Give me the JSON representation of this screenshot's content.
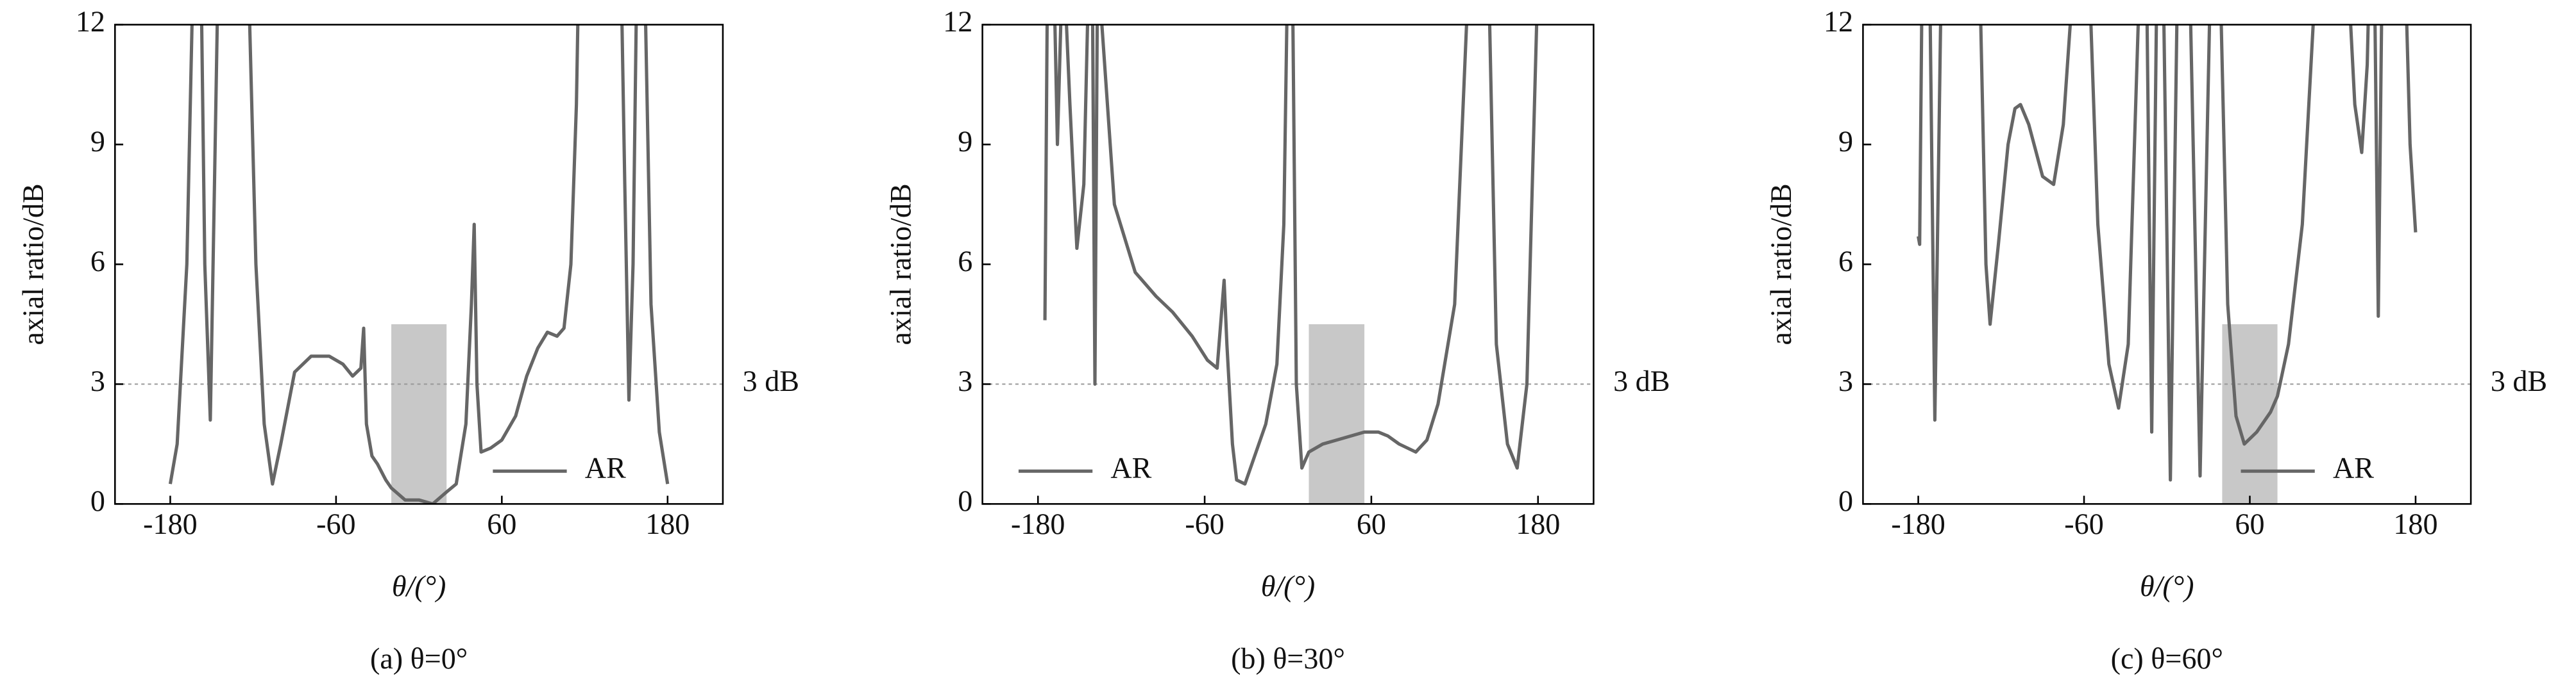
{
  "chart_data": [
    {
      "type": "line",
      "caption": "(a) θ=0°",
      "x_label": "θ/(°)",
      "y_label": "axial ratio/dB",
      "xlim": [
        -220,
        220
      ],
      "ylim": [
        0,
        12
      ],
      "xticks": [
        -180,
        -60,
        60,
        180
      ],
      "yticks": [
        0,
        3,
        6,
        9,
        12
      ],
      "legend": "lower right",
      "reference_line": {
        "value": 3,
        "label": "3 dB"
      },
      "highlight": {
        "x": [
          -20,
          20
        ],
        "y": [
          0,
          4.5
        ],
        "color": "#c8c8c8"
      },
      "x": [
        -180,
        -175,
        -168,
        -163,
        -158,
        -155,
        -151,
        -148,
        -145,
        -124,
        -118,
        -112,
        -106,
        -100,
        -90,
        -78,
        -65,
        -55,
        -48,
        -42,
        -40,
        -38,
        -34,
        -30,
        -24,
        -20,
        -10,
        0,
        10,
        20,
        27,
        34,
        38,
        40,
        42,
        45,
        52,
        60,
        70,
        78,
        86,
        93,
        100,
        105,
        110,
        114,
        116,
        146,
        149,
        152,
        155,
        158,
        163,
        168,
        174,
        180
      ],
      "series": [
        {
          "name": "AR",
          "color": "#666666",
          "values": [
            0.5,
            1.5,
            6,
            14,
            14,
            6,
            2.1,
            8,
            14,
            14,
            6,
            2,
            0.5,
            1.5,
            3.3,
            3.7,
            3.7,
            3.5,
            3.2,
            3.4,
            4.4,
            2,
            1.2,
            1.0,
            0.6,
            0.4,
            0.1,
            0.1,
            0,
            0.3,
            0.5,
            2,
            5,
            7,
            3,
            1.3,
            1.4,
            1.6,
            2.2,
            3.2,
            3.9,
            4.3,
            4.2,
            4.4,
            6,
            10,
            14,
            14,
            8,
            2.6,
            6,
            14,
            14,
            5,
            1.8,
            0.5
          ]
        }
      ]
    },
    {
      "type": "line",
      "caption": "(b) θ=30°",
      "x_label": "θ/(°)",
      "y_label": "axial ratio/dB",
      "xlim": [
        -220,
        220
      ],
      "ylim": [
        0,
        12
      ],
      "xticks": [
        -180,
        -60,
        60,
        180
      ],
      "yticks": [
        0,
        3,
        6,
        9,
        12
      ],
      "legend": "lower left",
      "reference_line": {
        "value": 3,
        "label": "3 dB"
      },
      "highlight": {
        "x": [
          15,
          55
        ],
        "y": [
          0,
          4.5
        ],
        "color": "#c8c8c8"
      },
      "x": [
        -175,
        -173,
        -169,
        -166,
        -162,
        -157,
        -152,
        -147,
        -143,
        -141,
        -139,
        -137,
        -134,
        -125,
        -110,
        -95,
        -83,
        -69,
        -58,
        -51,
        -46,
        -44,
        -40,
        -37,
        -31,
        -24,
        -16,
        -8,
        -3,
        0,
        3,
        6,
        10,
        15,
        25,
        35,
        45,
        55,
        65,
        72,
        80,
        92,
        100,
        108,
        120,
        131,
        144,
        150,
        158,
        165,
        172,
        179
      ],
      "series": [
        {
          "name": "AR",
          "color": "#666666",
          "values": [
            4.6,
            14,
            14,
            9,
            14,
            10,
            6.4,
            8,
            14,
            14,
            3,
            14,
            12,
            7.5,
            5.8,
            5.2,
            4.8,
            4.2,
            3.6,
            3.4,
            5.6,
            4,
            1.5,
            0.6,
            0.5,
            1.2,
            2,
            3.5,
            7,
            14,
            14,
            3,
            0.9,
            1.3,
            1.5,
            1.6,
            1.7,
            1.8,
            1.8,
            1.7,
            1.5,
            1.3,
            1.6,
            2.5,
            5,
            14,
            14,
            4,
            1.5,
            0.9,
            3,
            12
          ]
        }
      ]
    },
    {
      "type": "line",
      "caption": "(c) θ=60°",
      "x_label": "θ/(°)",
      "y_label": "axial ratio/dB",
      "xlim": [
        -220,
        220
      ],
      "ylim": [
        0,
        12
      ],
      "xticks": [
        -180,
        -60,
        60,
        180
      ],
      "yticks": [
        0,
        3,
        6,
        9,
        12
      ],
      "legend": "lower right",
      "reference_line": {
        "value": 3,
        "label": "3 dB"
      },
      "highlight": {
        "x": [
          40,
          80
        ],
        "y": [
          0,
          4.5
        ],
        "color": "#c8c8c8"
      },
      "x": [
        -180,
        -179,
        -177,
        -172,
        -168,
        -163,
        -136,
        -131,
        -128,
        -122,
        -115,
        -110,
        -106,
        -100,
        -90,
        -82,
        -75,
        -66,
        -57,
        -50,
        -42,
        -35,
        -28,
        -19,
        -15,
        -11,
        -7,
        -3,
        2.5,
        8,
        16,
        24,
        32,
        38,
        44,
        50,
        56,
        65,
        75,
        80,
        88,
        98,
        109,
        130,
        136,
        141,
        145,
        147,
        150,
        153,
        156,
        172,
        176,
        180
      ],
      "series": [
        {
          "name": "AR",
          "color": "#666666",
          "values": [
            6.7,
            6.5,
            14,
            14,
            2.1,
            14,
            14,
            6,
            4.5,
            6.5,
            9,
            9.9,
            10,
            9.5,
            8.2,
            8,
            9.5,
            14,
            14,
            7,
            3.5,
            2.4,
            4,
            14,
            14,
            1.8,
            14,
            14,
            0.6,
            14,
            14,
            0.7,
            14,
            14,
            5,
            2.2,
            1.5,
            1.8,
            2.3,
            2.7,
            4,
            7,
            14,
            14,
            10,
            8.8,
            11,
            14,
            14,
            4.7,
            14,
            14,
            9,
            6.8
          ]
        }
      ]
    }
  ]
}
